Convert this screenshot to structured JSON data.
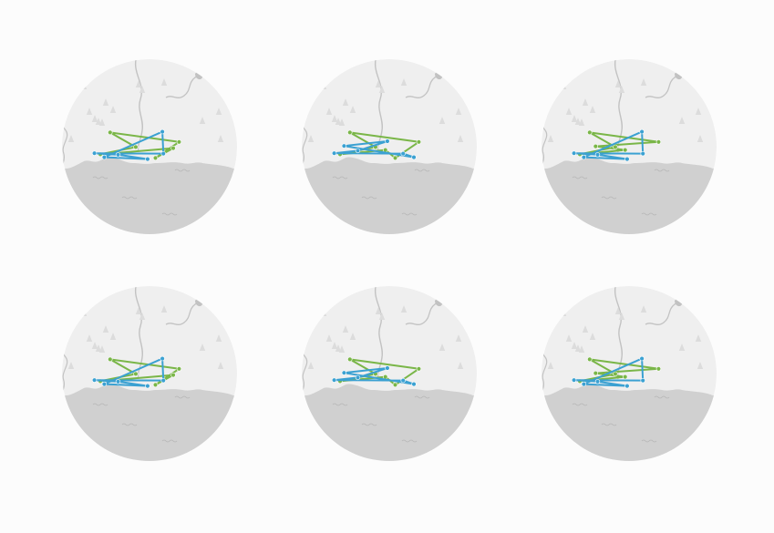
{
  "colors": {
    "page_background": "#fcfcfc",
    "land": "#efefef",
    "water": "#d0d0d0",
    "river": "#c2c2c2",
    "tree": "#dcdcdc",
    "water_label": "#b6b6b6",
    "route_blue": "#3ba1d2",
    "route_green": "#7ab648"
  },
  "icons": {
    "tree": "tree-icon",
    "water_label": "wave-label-icon",
    "waypoint": "waypoint-dot-icon"
  },
  "map_panels": [
    {
      "id": "panel-1",
      "routes": [
        {
          "color": "route_blue",
          "points": [
            [
              0.76,
              0.24
            ],
            [
              0.17,
              0.94
            ],
            [
              0.61,
              0.99
            ],
            [
              0.31,
              0.87
            ],
            [
              0.07,
              0.83
            ],
            [
              0.77,
              0.84
            ]
          ]
        },
        {
          "color": "route_green",
          "points": [
            [
              0.93,
              0.52
            ],
            [
              0.23,
              0.26
            ],
            [
              0.49,
              0.66
            ],
            [
              0.13,
              0.86
            ],
            [
              0.87,
              0.69
            ],
            [
              0.69,
              0.96
            ]
          ]
        }
      ]
    },
    {
      "id": "panel-2",
      "routes": [
        {
          "color": "route_blue",
          "points": [
            [
              0.88,
              0.94
            ],
            [
              0.17,
              0.63
            ],
            [
              0.61,
              0.5
            ],
            [
              0.31,
              0.76
            ],
            [
              0.07,
              0.83
            ],
            [
              0.77,
              0.84
            ]
          ]
        },
        {
          "color": "route_green",
          "points": [
            [
              0.93,
              0.52
            ],
            [
              0.23,
              0.26
            ],
            [
              0.49,
              0.66
            ],
            [
              0.13,
              0.86
            ],
            [
              0.59,
              0.74
            ],
            [
              0.69,
              0.96
            ]
          ]
        }
      ]
    },
    {
      "id": "panel-3",
      "routes": [
        {
          "color": "route_blue",
          "points": [
            [
              0.76,
              0.24
            ],
            [
              0.17,
              0.94
            ],
            [
              0.61,
              0.99
            ],
            [
              0.31,
              0.87
            ],
            [
              0.07,
              0.83
            ],
            [
              0.77,
              0.84
            ]
          ]
        },
        {
          "color": "route_green",
          "points": [
            [
              0.93,
              0.52
            ],
            [
              0.23,
              0.26
            ],
            [
              0.49,
              0.66
            ],
            [
              0.13,
              0.86
            ],
            [
              0.59,
              0.74
            ],
            [
              0.29,
              0.64
            ]
          ]
        }
      ]
    },
    {
      "id": "panel-4",
      "routes": [
        {
          "color": "route_blue",
          "points": [
            [
              0.76,
              0.24
            ],
            [
              0.17,
              0.94
            ],
            [
              0.61,
              0.99
            ],
            [
              0.31,
              0.87
            ],
            [
              0.07,
              0.83
            ],
            [
              0.77,
              0.84
            ]
          ]
        },
        {
          "color": "route_green",
          "points": [
            [
              0.93,
              0.52
            ],
            [
              0.23,
              0.26
            ],
            [
              0.49,
              0.66
            ],
            [
              0.13,
              0.86
            ],
            [
              0.87,
              0.69
            ],
            [
              0.69,
              0.96
            ]
          ]
        }
      ]
    },
    {
      "id": "panel-5",
      "routes": [
        {
          "color": "route_blue",
          "points": [
            [
              0.88,
              0.94
            ],
            [
              0.17,
              0.63
            ],
            [
              0.61,
              0.5
            ],
            [
              0.31,
              0.76
            ],
            [
              0.07,
              0.83
            ],
            [
              0.77,
              0.84
            ]
          ]
        },
        {
          "color": "route_green",
          "points": [
            [
              0.93,
              0.52
            ],
            [
              0.23,
              0.26
            ],
            [
              0.49,
              0.66
            ],
            [
              0.13,
              0.86
            ],
            [
              0.59,
              0.74
            ],
            [
              0.69,
              0.96
            ]
          ]
        }
      ]
    },
    {
      "id": "panel-6",
      "routes": [
        {
          "color": "route_blue",
          "points": [
            [
              0.76,
              0.24
            ],
            [
              0.17,
              0.94
            ],
            [
              0.61,
              0.99
            ],
            [
              0.31,
              0.87
            ],
            [
              0.07,
              0.83
            ],
            [
              0.77,
              0.84
            ]
          ]
        },
        {
          "color": "route_green",
          "points": [
            [
              0.93,
              0.52
            ],
            [
              0.23,
              0.26
            ],
            [
              0.49,
              0.66
            ],
            [
              0.13,
              0.86
            ],
            [
              0.59,
              0.74
            ],
            [
              0.29,
              0.64
            ]
          ]
        }
      ]
    }
  ]
}
